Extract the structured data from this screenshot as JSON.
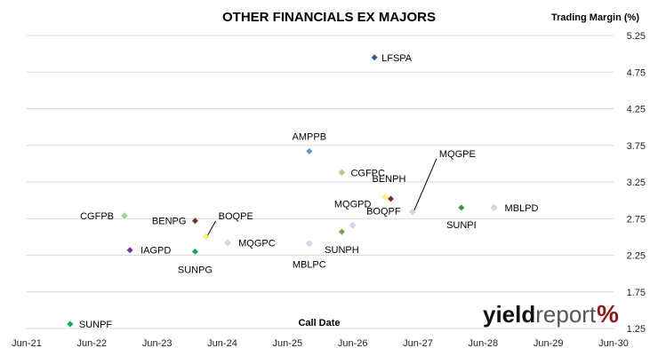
{
  "chart_data": {
    "type": "scatter",
    "title": "OTHER FINANCIALS EX MAJORS",
    "ylabel": "Trading Margin (%)",
    "xlabel": "Call Date",
    "x_ticks": [
      "Jun-21",
      "Jun-22",
      "Jun-23",
      "Jun-24",
      "Jun-25",
      "Jun-26",
      "Jun-27",
      "Jun-28",
      "Jun-29",
      "Jun-30"
    ],
    "y_ticks": [
      "1.25",
      "1.75",
      "2.25",
      "2.75",
      "3.25",
      "3.75",
      "4.25",
      "4.75",
      "5.25"
    ],
    "xlim": [
      "2021-06",
      "2030-06"
    ],
    "ylim": [
      1.25,
      5.25
    ],
    "y_axis_side": "right",
    "grid": "horizontal",
    "points": [
      {
        "name": "LFSPA",
        "x": "2026-10",
        "y": 4.95,
        "color": "#2f5597"
      },
      {
        "name": "AMPPB",
        "x": "2025-10",
        "y": 3.67,
        "color": "#5b9bd5"
      },
      {
        "name": "CGFPC",
        "x": "2026-04",
        "y": 3.38,
        "color": "#a9d18e"
      },
      {
        "name": "BENPH",
        "x": "2027-01",
        "y": 3.02,
        "color": "#7b2c2c"
      },
      {
        "name": "BOQPF",
        "x": "2026-12",
        "y": 3.04,
        "color": "#ffff66"
      },
      {
        "name": "MQGPE",
        "x": "2027-05",
        "y": 2.84,
        "color": "#c9d9f0"
      },
      {
        "name": "SUNPI",
        "x": "2028-02",
        "y": 2.9,
        "color": "#33a02c"
      },
      {
        "name": "MBLPD",
        "x": "2028-08",
        "y": 2.9,
        "color": "#c9d9f0"
      },
      {
        "name": "CGFPB",
        "x": "2022-12",
        "y": 2.79,
        "color": "#a9d18e"
      },
      {
        "name": "BENPG",
        "x": "2024-01",
        "y": 2.72,
        "color": "#7b2c2c"
      },
      {
        "name": "BOQPE",
        "x": "2024-03",
        "y": 2.5,
        "color": "#ffff66"
      },
      {
        "name": "MQGPD",
        "x": "2026-06",
        "y": 2.66,
        "color": "#c9d9f0"
      },
      {
        "name": "MQGPC",
        "x": "2024-07",
        "y": 2.42,
        "color": "#c9d9f0"
      },
      {
        "name": "MBLPC",
        "x": "2025-10",
        "y": 2.41,
        "color": "#c9d9f0"
      },
      {
        "name": "SUNPH",
        "x": "2026-04",
        "y": 2.57,
        "color": "#70ad47"
      },
      {
        "name": "IAGPD",
        "x": "2023-01",
        "y": 2.32,
        "color": "#7030a0"
      },
      {
        "name": "SUNPG",
        "x": "2024-01",
        "y": 2.3,
        "color": "#00b050"
      },
      {
        "name": "SUNPF",
        "x": "2022-02",
        "y": 1.31,
        "color": "#00b050"
      }
    ]
  },
  "logo": {
    "part1": "yield",
    "part2": "report",
    "symbol": "%"
  }
}
